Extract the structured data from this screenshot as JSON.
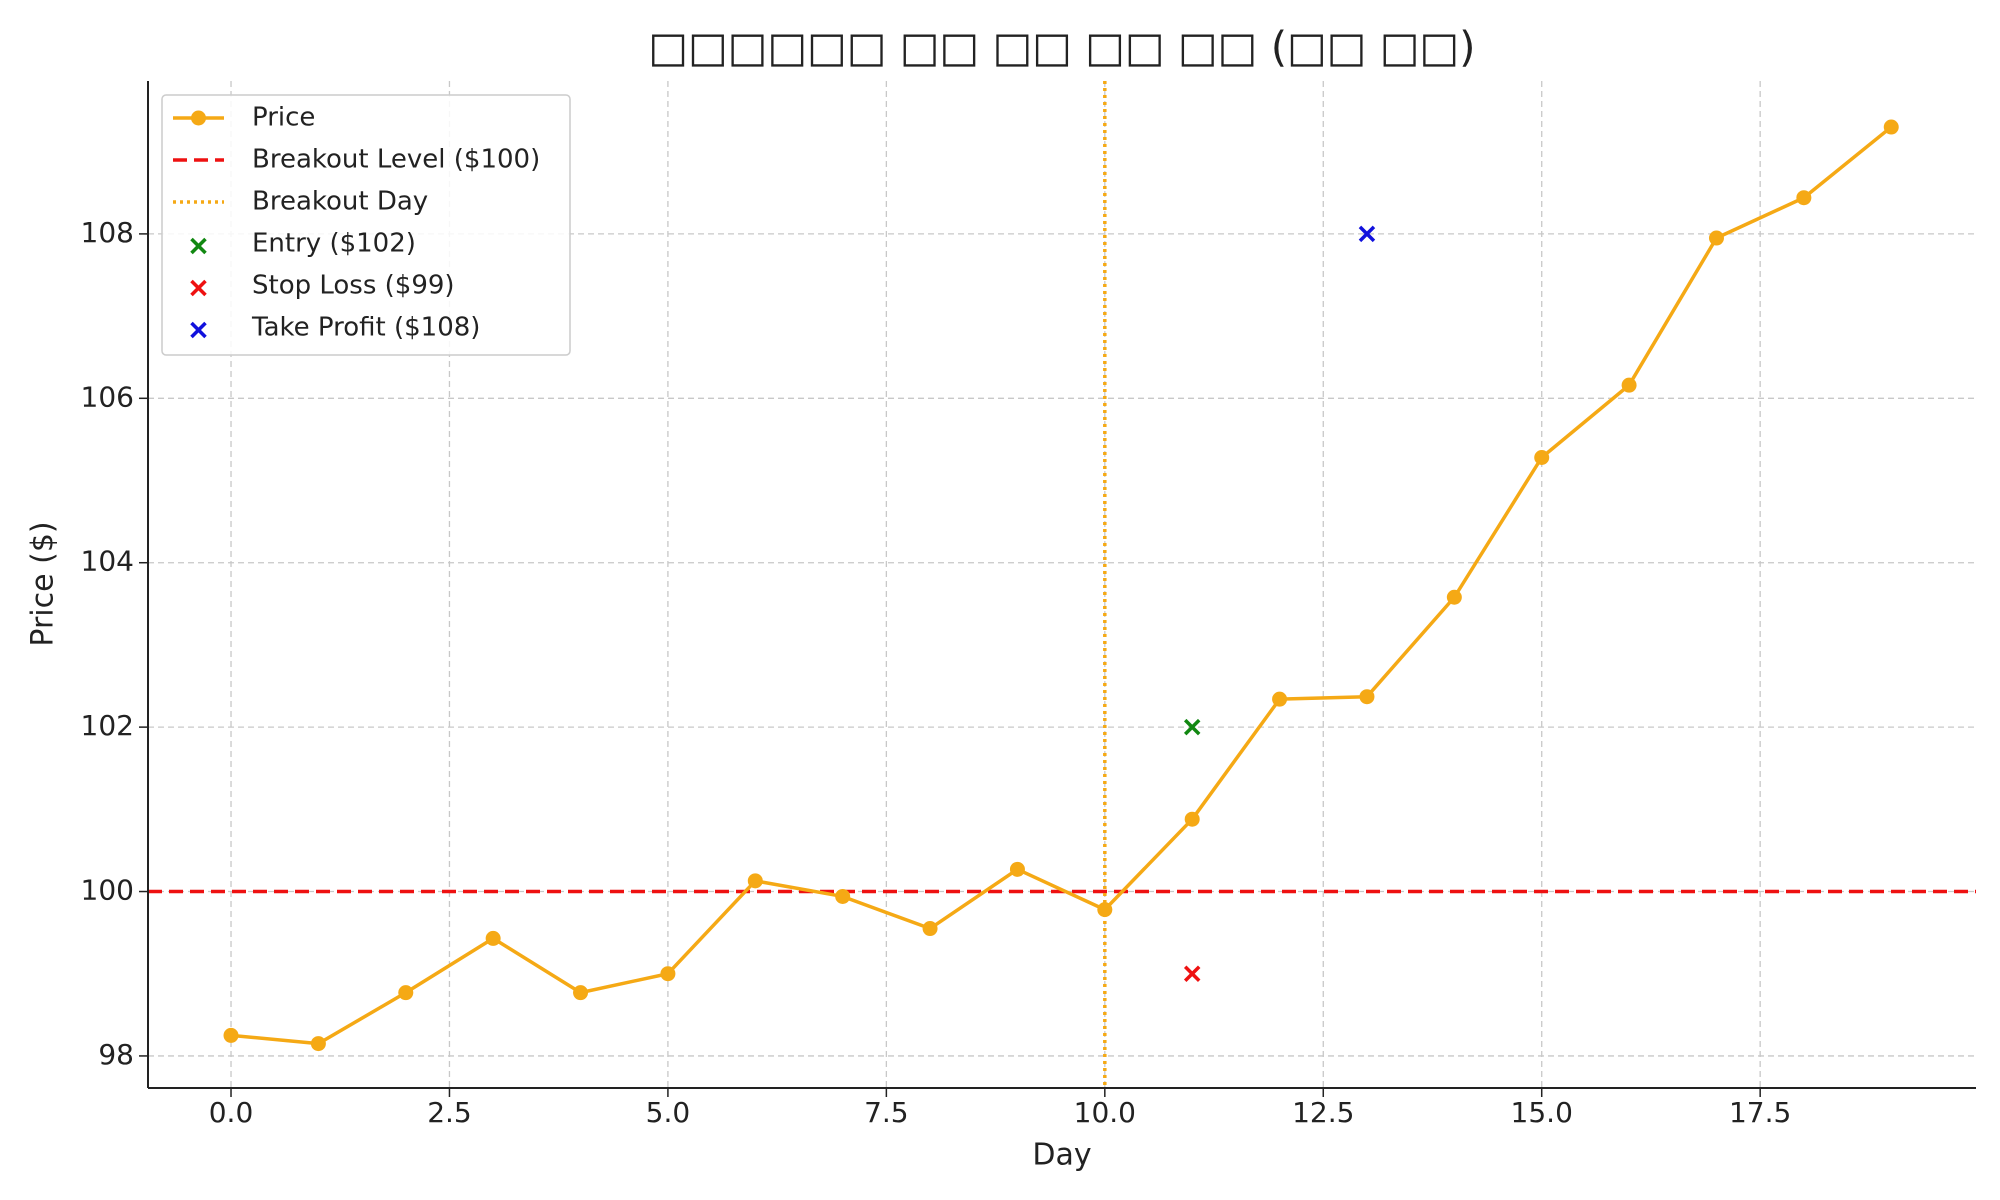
{
  "chart_data": {
    "type": "line",
    "title": "□□□□□□ □□ □□ □□ □□ (□□ □□)",
    "xlabel": "Day",
    "ylabel": "Price ($)",
    "xlim": [
      -0.95,
      19.97
    ],
    "ylim": [
      97.61,
      109.86
    ],
    "xticks": [
      {
        "value": 0,
        "label": "0.0"
      },
      {
        "value": 2.5,
        "label": "2.5"
      },
      {
        "value": 5,
        "label": "5.0"
      },
      {
        "value": 7.5,
        "label": "7.5"
      },
      {
        "value": 10,
        "label": "10.0"
      },
      {
        "value": 12.5,
        "label": "12.5"
      },
      {
        "value": 15,
        "label": "15.0"
      },
      {
        "value": 17.5,
        "label": "17.5"
      }
    ],
    "yticks": [
      98,
      100,
      102,
      104,
      106,
      108
    ],
    "grid": true,
    "legend": "upper left",
    "series": [
      {
        "name": "Price",
        "color": "#f5a915",
        "x": [
          0,
          1,
          2,
          3,
          4,
          5,
          6,
          7,
          8,
          9,
          10,
          11,
          12,
          13,
          14,
          15,
          16,
          17,
          18,
          19
        ],
        "values": [
          98.25,
          98.15,
          98.77,
          99.43,
          98.77,
          99.0,
          100.13,
          99.94,
          99.55,
          100.27,
          99.78,
          100.88,
          102.34,
          102.37,
          103.58,
          105.28,
          106.16,
          107.95,
          108.44,
          109.3
        ]
      }
    ],
    "hlines": [
      {
        "name": "Breakout Level ($100)",
        "color": "#ee1111",
        "value": 100
      }
    ],
    "vlines": [
      {
        "name": "Breakout Day",
        "color": "#f5a915",
        "value": 10
      }
    ],
    "points": [
      {
        "name": "Entry ($102)",
        "color": "#118811",
        "x": 11,
        "y": 102
      },
      {
        "name": "Stop Loss ($99)",
        "color": "#ee1111",
        "x": 11,
        "y": 99
      },
      {
        "name": "Take Profit ($108)",
        "color": "#1111dd",
        "x": 13,
        "y": 108
      }
    ]
  }
}
